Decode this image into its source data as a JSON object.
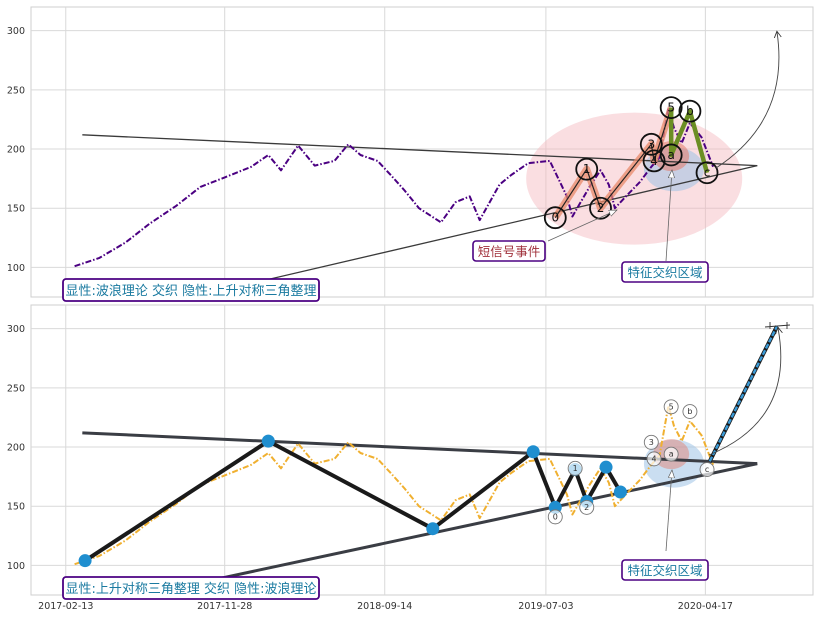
{
  "chart_data": [
    {
      "panel": "top",
      "type": "line",
      "ylim": [
        75,
        320
      ],
      "y_ticks": [
        100,
        150,
        200,
        250,
        300
      ],
      "x_ticks": [],
      "grid": true,
      "series": [
        {
          "color": "#4b0082",
          "style": "dashdot",
          "points": [
            [
              "2017-03-01",
              101
            ],
            [
              "2017-04-15",
              108
            ],
            [
              "2017-06-01",
              121
            ],
            [
              "2017-07-15",
              137
            ],
            [
              "2017-09-01",
              152
            ],
            [
              "2017-10-15",
              168
            ],
            [
              "2017-11-28",
              176
            ],
            [
              "2018-01-15",
              185
            ],
            [
              "2018-02-15",
              195
            ],
            [
              "2018-03-10",
              182
            ],
            [
              "2018-04-10",
              203
            ],
            [
              "2018-05-10",
              186
            ],
            [
              "2018-06-15",
              190
            ],
            [
              "2018-07-10",
              204
            ],
            [
              "2018-08-01",
              195
            ],
            [
              "2018-09-01",
              190
            ],
            [
              "2018-09-25",
              178
            ],
            [
              "2018-10-20",
              165
            ],
            [
              "2018-11-15",
              150
            ],
            [
              "2018-12-25",
              138
            ],
            [
              "2019-01-20",
              155
            ],
            [
              "2019-02-15",
              160
            ],
            [
              "2019-03-05",
              140
            ],
            [
              "2019-04-10",
              170
            ],
            [
              "2019-05-01",
              178
            ],
            [
              "2019-06-01",
              188
            ],
            [
              "2019-07-10",
              190
            ],
            [
              "2019-08-10",
              160
            ],
            [
              "2019-08-20",
              143
            ],
            [
              "2019-09-20",
              168
            ],
            [
              "2019-10-10",
              182
            ],
            [
              "2019-10-25",
              170
            ],
            [
              "2019-11-05",
              150
            ],
            [
              "2019-11-25",
              160
            ],
            [
              "2019-12-20",
              172
            ],
            [
              "2020-01-10",
              185
            ],
            [
              "2020-01-25",
              193
            ],
            [
              "2020-02-10",
              235
            ],
            [
              "2020-02-20",
              218
            ],
            [
              "2020-03-05",
              205
            ],
            [
              "2020-03-20",
              222
            ],
            [
              "2020-04-10",
              210
            ],
            [
              "2020-05-01",
              185
            ]
          ]
        }
      ],
      "trendlines": [
        {
          "from": [
            "2017-03-15",
            212
          ],
          "to": [
            "2020-07-20",
            186
          ]
        },
        {
          "from": [
            "2017-10-01",
            75
          ],
          "to": [
            "2020-07-20",
            186
          ]
        }
      ],
      "wave_labels": [
        {
          "label": "0",
          "x": "2019-07-20",
          "y": 142
        },
        {
          "label": "1",
          "x": "2019-09-15",
          "y": 183
        },
        {
          "label": "2",
          "x": "2019-10-10",
          "y": 150
        },
        {
          "label": "3",
          "x": "2020-01-10",
          "y": 204
        },
        {
          "label": "4",
          "x": "2020-01-15",
          "y": 190
        },
        {
          "label": "5",
          "x": "2020-02-15",
          "y": 235
        },
        {
          "label": "a",
          "x": "2020-02-15",
          "y": 195
        },
        {
          "label": "b",
          "x": "2020-03-20",
          "y": 232
        },
        {
          "label": "c",
          "x": "2020-04-20",
          "y": 180
        }
      ],
      "callouts": {
        "signal_event": "短信号事件",
        "feature_zone": "特征交织区域"
      },
      "caption": "显性:波浪理论 交织 隐性:上升对称三角整理"
    },
    {
      "panel": "bottom",
      "type": "line",
      "ylim": [
        75,
        320
      ],
      "y_ticks": [
        100,
        150,
        200,
        250,
        300
      ],
      "x_ticks": [
        "2017-02-13",
        "2017-11-28",
        "2018-09-14",
        "2019-07-03",
        "2020-04-17"
      ],
      "grid": true,
      "series": [
        {
          "color": "#f0b030",
          "style": "dashdot",
          "points": [
            [
              "2017-03-01",
              101
            ],
            [
              "2017-04-15",
              108
            ],
            [
              "2017-06-01",
              121
            ],
            [
              "2017-07-15",
              137
            ],
            [
              "2017-09-01",
              152
            ],
            [
              "2017-10-15",
              168
            ],
            [
              "2017-11-28",
              176
            ],
            [
              "2018-01-15",
              185
            ],
            [
              "2018-02-15",
              195
            ],
            [
              "2018-03-10",
              182
            ],
            [
              "2018-04-10",
              203
            ],
            [
              "2018-05-10",
              186
            ],
            [
              "2018-06-15",
              190
            ],
            [
              "2018-07-10",
              204
            ],
            [
              "2018-08-01",
              195
            ],
            [
              "2018-09-01",
              190
            ],
            [
              "2018-09-25",
              178
            ],
            [
              "2018-10-20",
              165
            ],
            [
              "2018-11-15",
              150
            ],
            [
              "2018-12-25",
              138
            ],
            [
              "2019-01-20",
              155
            ],
            [
              "2019-02-15",
              160
            ],
            [
              "2019-03-05",
              140
            ],
            [
              "2019-04-10",
              170
            ],
            [
              "2019-05-01",
              178
            ],
            [
              "2019-06-01",
              188
            ],
            [
              "2019-07-10",
              190
            ],
            [
              "2019-08-10",
              160
            ],
            [
              "2019-08-20",
              143
            ],
            [
              "2019-09-20",
              168
            ],
            [
              "2019-10-10",
              182
            ],
            [
              "2019-10-25",
              170
            ],
            [
              "2019-11-05",
              150
            ],
            [
              "2019-11-25",
              160
            ],
            [
              "2019-12-20",
              172
            ],
            [
              "2020-01-10",
              185
            ],
            [
              "2020-01-25",
              193
            ],
            [
              "2020-02-10",
              235
            ],
            [
              "2020-02-20",
              218
            ],
            [
              "2020-03-05",
              205
            ],
            [
              "2020-03-20",
              222
            ],
            [
              "2020-04-10",
              210
            ],
            [
              "2020-05-01",
              185
            ]
          ]
        }
      ],
      "pattern_points": [
        [
          "2017-03-20",
          104
        ],
        [
          "2018-02-15",
          205
        ],
        [
          "2018-12-10",
          131
        ],
        [
          "2019-06-10",
          196
        ],
        [
          "2019-07-20",
          149
        ],
        [
          "2019-08-25",
          181
        ],
        [
          "2019-09-15",
          154
        ],
        [
          "2019-10-20",
          183
        ],
        [
          "2019-11-15",
          162
        ]
      ],
      "trendlines": [
        {
          "from": [
            "2017-03-15",
            212
          ],
          "to": [
            "2020-07-20",
            186
          ]
        },
        {
          "from": [
            "2017-09-20",
            83
          ],
          "to": [
            "2020-07-20",
            186
          ]
        }
      ],
      "wave_labels": [
        {
          "label": "0",
          "x": "2019-07-20",
          "y": 141
        },
        {
          "label": "1",
          "x": "2019-08-25",
          "y": 182
        },
        {
          "label": "2",
          "x": "2019-09-15",
          "y": 149
        },
        {
          "label": "3",
          "x": "2020-01-10",
          "y": 204
        },
        {
          "label": "4",
          "x": "2020-01-15",
          "y": 190
        },
        {
          "label": "5",
          "x": "2020-02-15",
          "y": 234
        },
        {
          "label": "a",
          "x": "2020-02-15",
          "y": 194
        },
        {
          "label": "b",
          "x": "2020-03-20",
          "y": 230
        },
        {
          "label": "c",
          "x": "2020-04-20",
          "y": 181
        }
      ],
      "callouts": {
        "feature_zone": "特征交织区域"
      },
      "caption": "显性:上升对称三角整理 交织 隐性:波浪理论"
    }
  ],
  "colors": {
    "top_series": "#4b0082",
    "bottom_series": "#f0b030",
    "pattern_node": "#1f8ecf",
    "trendline_top": "#3a3a3a",
    "trendline_bottom": "#3a3d44",
    "impulse_fill": "#e8896a",
    "corrective_line": "#6b8e23",
    "highlight_ellipse": "#f4b6bd",
    "blue_ellipse": "#9ec3e6",
    "caption_border": "#4b0082",
    "caption_text": "#1a7aa0",
    "signal_text": "#a0303a",
    "forecast_arrow": "#3a9bd8"
  }
}
